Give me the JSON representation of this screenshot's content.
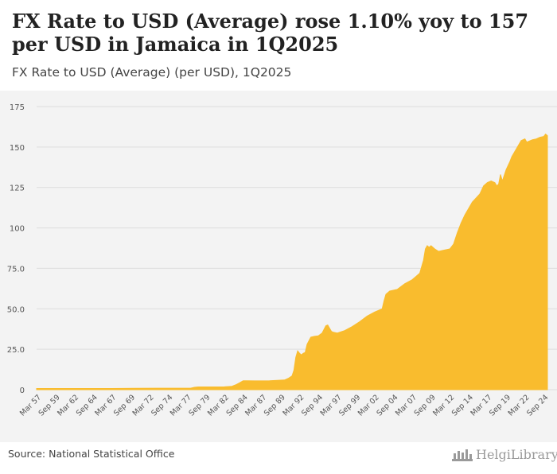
{
  "header": {
    "title": "FX Rate to USD (Average) rose 1.10% yoy to 157 per USD in Jamaica in 1Q2025",
    "subtitle": "FX Rate to USD (Average) (per USD), 1Q2025"
  },
  "footer": {
    "source": "Source: National Statistical Office",
    "logo_text": "HelgiLibrary"
  },
  "colors": {
    "fill": "#f9bc2e",
    "grid": "#dddddd",
    "background": "#f3f3f3",
    "text": "#555555"
  },
  "chart_data": {
    "type": "area",
    "title": "FX Rate to USD (Average) (per USD), 1Q2025",
    "xlabel": "",
    "ylabel": "",
    "ylim": [
      0,
      175
    ],
    "yticks": [
      0,
      25.0,
      50.0,
      75.0,
      100,
      125,
      150,
      175
    ],
    "ytick_labels": [
      "0",
      "25.0",
      "50.0",
      "75.0",
      "100",
      "125",
      "150",
      "175"
    ],
    "xlim": [
      1957.0,
      2025.0
    ],
    "x_tick_labels": [
      {
        "label": "Mar 57",
        "x": 1957.0
      },
      {
        "label": "Sep 59",
        "x": 1959.5
      },
      {
        "label": "Mar 62",
        "x": 1962.0
      },
      {
        "label": "Sep 64",
        "x": 1964.5
      },
      {
        "label": "Mar 67",
        "x": 1967.0
      },
      {
        "label": "Sep 69",
        "x": 1969.5
      },
      {
        "label": "Mar 72",
        "x": 1972.0
      },
      {
        "label": "Sep 74",
        "x": 1974.5
      },
      {
        "label": "Mar 77",
        "x": 1977.0
      },
      {
        "label": "Sep 79",
        "x": 1979.5
      },
      {
        "label": "Mar 82",
        "x": 1982.0
      },
      {
        "label": "Sep 84",
        "x": 1984.5
      },
      {
        "label": "Mar 87",
        "x": 1987.0
      },
      {
        "label": "Sep 89",
        "x": 1989.5
      },
      {
        "label": "Mar 92",
        "x": 1992.0
      },
      {
        "label": "Sep 94",
        "x": 1994.5
      },
      {
        "label": "Mar 97",
        "x": 1997.0
      },
      {
        "label": "Sep 99",
        "x": 1999.5
      },
      {
        "label": "Mar 02",
        "x": 2002.0
      },
      {
        "label": "Sep 04",
        "x": 2004.5
      },
      {
        "label": "Mar 07",
        "x": 2007.0
      },
      {
        "label": "Sep 09",
        "x": 2009.5
      },
      {
        "label": "Mar 12",
        "x": 2012.0
      },
      {
        "label": "Sep 14",
        "x": 2014.5
      },
      {
        "label": "Mar 17",
        "x": 2017.0
      },
      {
        "label": "Sep 19",
        "x": 2019.5
      },
      {
        "label": "Mar 22",
        "x": 2022.0
      },
      {
        "label": "Sep 24",
        "x": 2024.5
      }
    ],
    "series": [
      {
        "name": "FX Rate to USD (Average)",
        "x": [
          1957.0,
          1962.0,
          1967.0,
          1970.0,
          1973.0,
          1977.5,
          1978.0,
          1978.5,
          1982.0,
          1983.0,
          1983.5,
          1984.0,
          1984.5,
          1985.0,
          1986.0,
          1988.0,
          1990.0,
          1990.5,
          1991.0,
          1991.25,
          1991.5,
          1991.75,
          1992.0,
          1992.25,
          1992.5,
          1992.75,
          1993.0,
          1993.5,
          1994.0,
          1994.5,
          1995.0,
          1995.5,
          1995.75,
          1996.0,
          1996.25,
          1996.5,
          1997.0,
          1998.0,
          1999.0,
          2000.0,
          2001.0,
          2002.0,
          2003.0,
          2003.25,
          2003.5,
          2004.0,
          2005.0,
          2006.0,
          2007.0,
          2007.5,
          2008.0,
          2008.5,
          2008.75,
          2009.0,
          2009.25,
          2009.5,
          2010.0,
          2010.5,
          2011.0,
          2012.0,
          2012.5,
          2013.0,
          2013.5,
          2014.0,
          2015.0,
          2016.0,
          2016.5,
          2017.0,
          2017.5,
          2018.0,
          2018.25,
          2018.5,
          2018.75,
          2019.0,
          2019.5,
          2020.0,
          2020.25,
          2020.5,
          2021.0,
          2021.5,
          2022.0,
          2022.25,
          2022.5,
          2023.0,
          2023.5,
          2024.0,
          2024.5,
          2024.75,
          2025.0
        ],
        "values": [
          0.71,
          0.71,
          0.71,
          0.83,
          0.91,
          0.91,
          1.5,
          1.7,
          1.78,
          2.1,
          3.0,
          4.2,
          5.5,
          5.5,
          5.48,
          5.5,
          6.0,
          7.0,
          8.5,
          12.0,
          20.0,
          24.0,
          22.5,
          21.5,
          22.5,
          23.0,
          28.0,
          32.5,
          33.0,
          33.3,
          35.0,
          39.5,
          40.0,
          38.0,
          36.0,
          35.5,
          35.0,
          36.5,
          39.0,
          42.0,
          45.5,
          48.0,
          50.0,
          55.0,
          59.0,
          61.0,
          62.0,
          65.5,
          68.0,
          70.0,
          72.0,
          80.0,
          87.0,
          89.0,
          88.0,
          89.0,
          87.0,
          85.5,
          86.0,
          87.0,
          90.0,
          97.0,
          103.0,
          108.0,
          116.0,
          121.0,
          126.0,
          128.0,
          129.0,
          128.0,
          126.0,
          127.0,
          133.0,
          129.0,
          136.0,
          141.0,
          144.0,
          146.0,
          150.0,
          154.0,
          155.0,
          153.0,
          153.5,
          154.5,
          155.0,
          156.0,
          156.5,
          158.0,
          157.0
        ]
      }
    ]
  }
}
